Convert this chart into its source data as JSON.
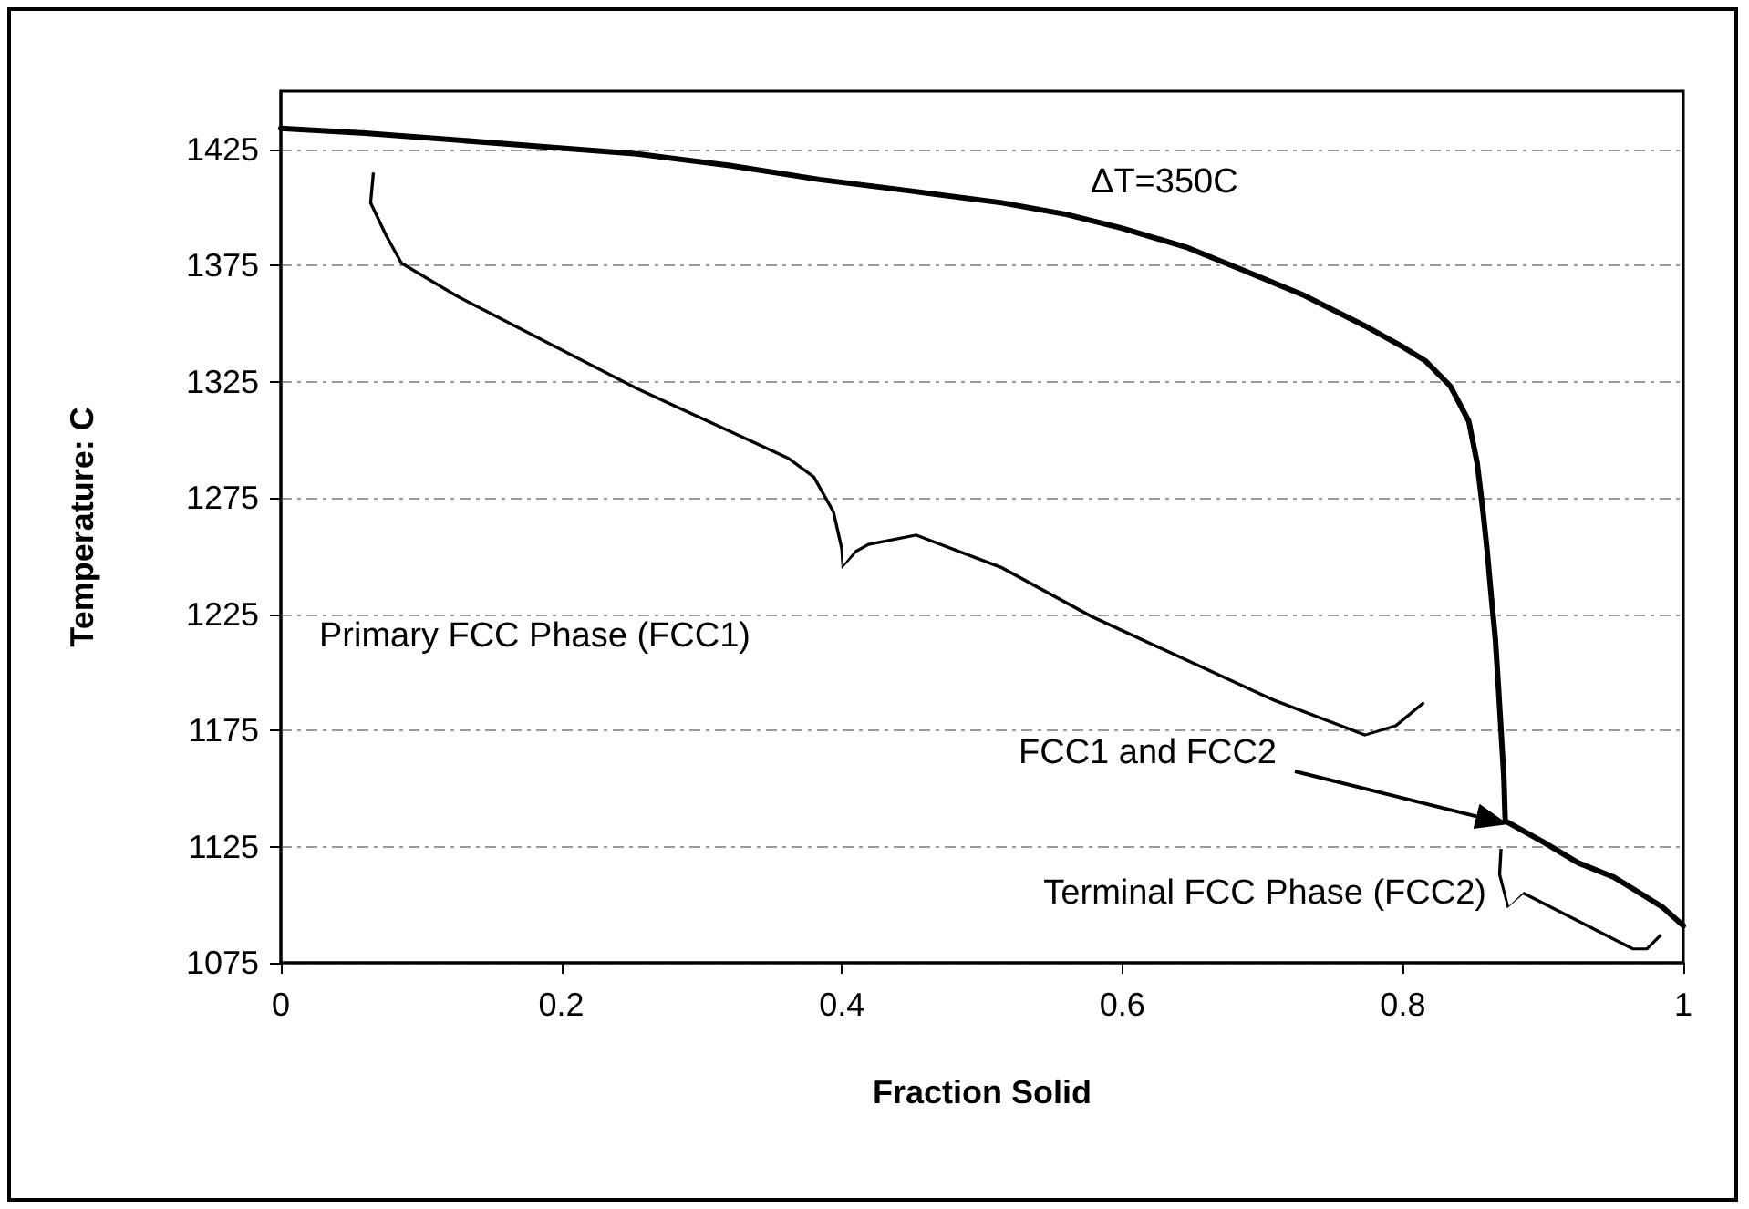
{
  "chart_data": {
    "type": "line",
    "xlabel": "Fraction Solid",
    "ylabel": "Temperature: C",
    "x": [
      0,
      0.06,
      0.125,
      0.19,
      0.254,
      0.32,
      0.384,
      0.45,
      0.514,
      0.56,
      0.6,
      0.645,
      0.686,
      0.73,
      0.773,
      0.8,
      0.816,
      0.834,
      0.847,
      0.853,
      0.857,
      0.86,
      0.863,
      0.866,
      0.868,
      0.87,
      0.872,
      0.873,
      0.9,
      0.925,
      0.95,
      0.969,
      0.985,
      1
    ],
    "series": [
      {
        "color": "#000000",
        "values": [
          1434,
          1432,
          1429,
          1426,
          1423,
          1418,
          1412,
          1407,
          1402,
          1397,
          1391,
          1383,
          1373,
          1362,
          1349,
          1340,
          1334,
          1323,
          1308,
          1290,
          1270,
          1253,
          1233,
          1214,
          1195,
          1175,
          1155,
          1136,
          1127,
          1118,
          1112,
          1105,
          1099,
          1091
        ]
      }
    ],
    "xlim": [
      0,
      1
    ],
    "xticks": [
      0,
      0.2,
      0.4,
      0.6,
      0.8,
      1
    ],
    "ylim": [
      1075,
      1450
    ],
    "yticks": [
      1075,
      1125,
      1175,
      1225,
      1275,
      1325,
      1375,
      1425
    ],
    "grid": "y",
    "marker": "none",
    "line_style": "solid",
    "annotations": [
      "ΔT=350C",
      "Primary FCC Phase (FCC1)",
      "FCC1 and FCC2",
      "Terminal FCC Phase (FCC2)"
    ]
  }
}
